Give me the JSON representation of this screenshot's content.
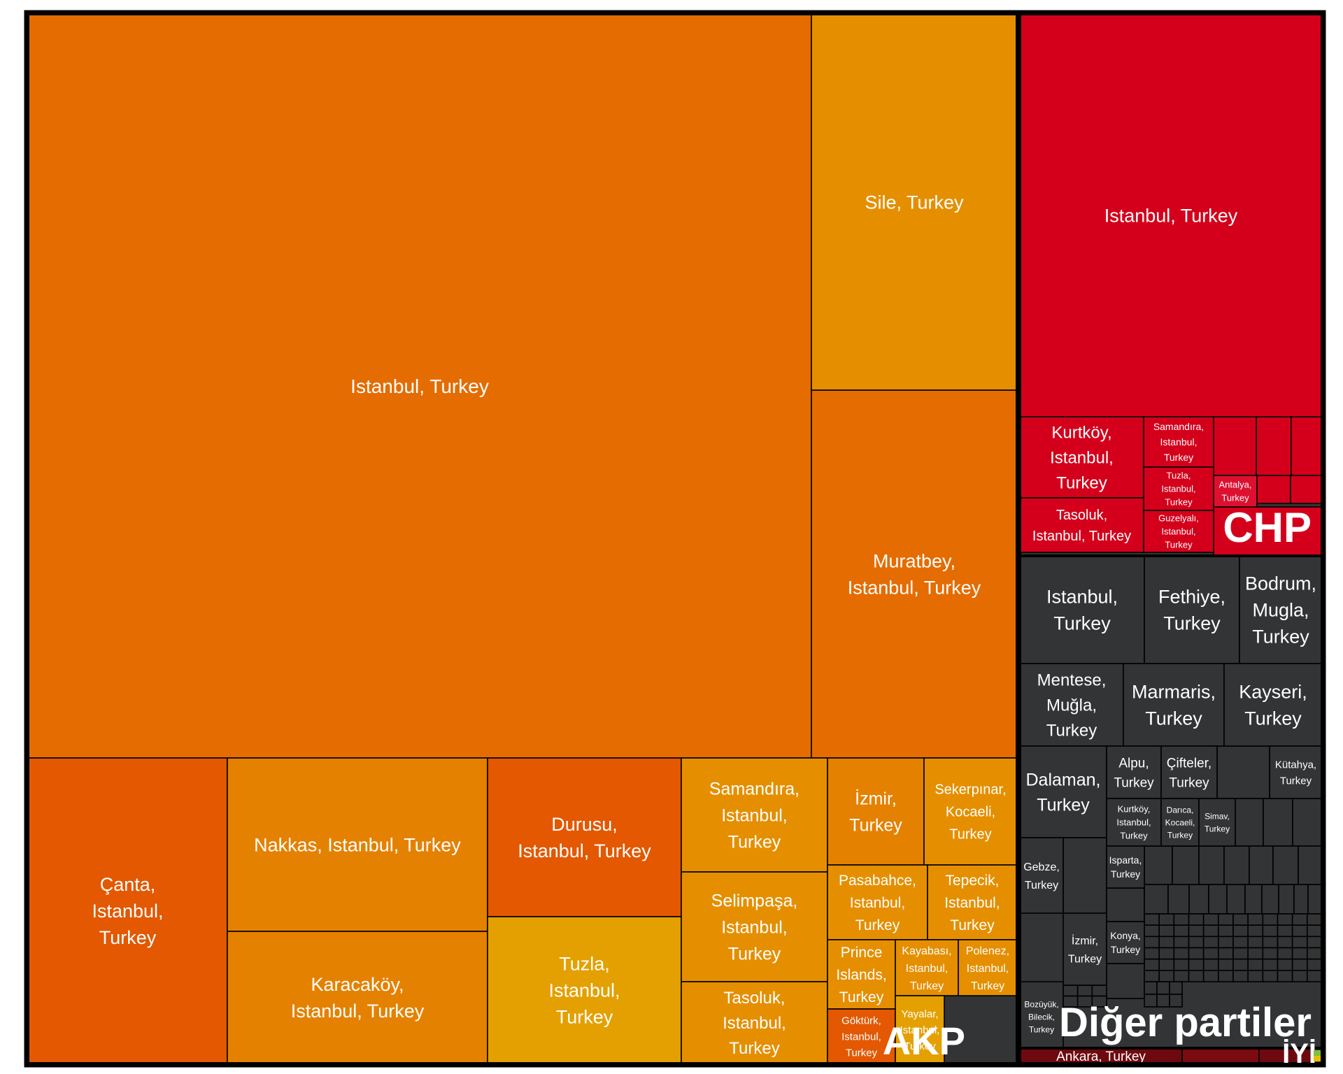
{
  "chart_data": {
    "type": "treemap",
    "colors": {
      "AKP": [
        "#e56c00",
        "#e58f00",
        "#e58100",
        "#e35800",
        "#e4a000",
        "#e57400"
      ],
      "CHP": "#d4001b",
      "other": "#333435",
      "border": "#000000"
    },
    "groups": [
      {
        "name": "AKP",
        "items": [
          {
            "label": "Istanbul, Turkey",
            "lines": [
              "Istanbul, Turkey"
            ]
          },
          {
            "label": "Sile, Turkey",
            "lines": [
              "Sile, Turkey"
            ]
          },
          {
            "label": "Muratbey, Istanbul, Turkey",
            "lines": [
              "Muratbey,",
              "Istanbul, Turkey"
            ]
          },
          {
            "label": "Çanta, Istanbul, Turkey",
            "lines": [
              "Çanta,",
              "Istanbul,",
              "Turkey"
            ]
          },
          {
            "label": "Nakkas, Istanbul, Turkey",
            "lines": [
              "Nakkas, Istanbul, Turkey"
            ]
          },
          {
            "label": "Karacaköy, Istanbul, Turkey",
            "lines": [
              "Karacaköy,",
              "Istanbul, Turkey"
            ]
          },
          {
            "label": "Durusu, Istanbul, Turkey",
            "lines": [
              "Durusu,",
              "Istanbul, Turkey"
            ]
          },
          {
            "label": "Tuzla, Istanbul, Turkey",
            "lines": [
              "Tuzla,",
              "Istanbul,",
              "Turkey"
            ]
          },
          {
            "label": "Samandıra, Istanbul, Turkey",
            "lines": [
              "Samandıra,",
              "Istanbul,",
              "Turkey"
            ]
          },
          {
            "label": "Selimpaşa, Istanbul, Turkey",
            "lines": [
              "Selimpaşa,",
              "Istanbul,",
              "Turkey"
            ]
          },
          {
            "label": "Tasoluk, Istanbul, Turkey",
            "lines": [
              "Tasoluk,",
              "Istanbul,",
              "Turkey"
            ]
          },
          {
            "label": "İzmir, Turkey",
            "lines": [
              "İzmir,",
              "Turkey"
            ]
          },
          {
            "label": "Sekerpınar, Kocaeli, Turkey",
            "lines": [
              "Sekerpınar,",
              "Kocaeli,",
              "Turkey"
            ]
          },
          {
            "label": "Pasabahce, Istanbul, Turkey",
            "lines": [
              "Pasabahce,",
              "Istanbul,",
              "Turkey"
            ]
          },
          {
            "label": "Tepecik, Istanbul, Turkey",
            "lines": [
              "Tepecik,",
              "Istanbul,",
              "Turkey"
            ]
          },
          {
            "label": "Prince Islands, Turkey",
            "lines": [
              "Prince",
              "Islands,",
              "Turkey"
            ]
          },
          {
            "label": "Kayabası, Istanbul, Turkey",
            "lines": [
              "Kayabası,",
              "Istanbul,",
              "Turkey"
            ]
          },
          {
            "label": "Polenez, Istanbul, Turkey",
            "lines": [
              "Polenez,",
              "Istanbul,",
              "Turkey"
            ]
          },
          {
            "label": "Göktürk, Istanbul, Turkey",
            "lines": [
              "Göktürk,",
              "Istanbul,",
              "Turkey"
            ]
          },
          {
            "label": "Yayalar, Istanbul, Turkey",
            "lines": [
              "Yayalar,",
              "Istanbul,",
              "Turkey"
            ]
          }
        ]
      },
      {
        "name": "CHP",
        "items": [
          {
            "label": "Istanbul, Turkey",
            "lines": [
              "Istanbul, Turkey"
            ]
          },
          {
            "label": "Kurtköy, Istanbul, Turkey",
            "lines": [
              "Kurtköy,",
              "Istanbul,",
              "Turkey"
            ]
          },
          {
            "label": "Tasoluk, Istanbul, Turkey",
            "lines": [
              "Tasoluk,",
              "Istanbul, Turkey"
            ]
          },
          {
            "label": "Samandıra, Istanbul, Turkey",
            "lines": [
              "Samandıra,",
              "Istanbul,",
              "Turkey"
            ]
          },
          {
            "label": "Tuzla, Istanbul, Turkey",
            "lines": [
              "Tuzla,",
              "Istanbul,",
              "Turkey"
            ]
          },
          {
            "label": "Guzelyalı, Istanbul, Turkey",
            "lines": [
              "Guzelyalı,",
              "Istanbul,",
              "Turkey"
            ]
          },
          {
            "label": "Antalya, Turkey",
            "lines": [
              "Antalya,",
              "Turkey"
            ]
          }
        ]
      },
      {
        "name": "Diğer partiler",
        "items": [
          {
            "label": "Istanbul, Turkey",
            "lines": [
              "Istanbul,",
              "Turkey"
            ]
          },
          {
            "label": "Fethiye, Turkey",
            "lines": [
              "Fethiye,",
              "Turkey"
            ]
          },
          {
            "label": "Bodrum, Mugla, Turkey",
            "lines": [
              "Bodrum,",
              "Mugla,",
              "Turkey"
            ]
          },
          {
            "label": "Mentese, Muğla, Turkey",
            "lines": [
              "Mentese,",
              "Muğla,",
              "Turkey"
            ]
          },
          {
            "label": "Marmaris, Turkey",
            "lines": [
              "Marmaris,",
              "Turkey"
            ]
          },
          {
            "label": "Kayseri, Turkey",
            "lines": [
              "Kayseri,",
              "Turkey"
            ]
          },
          {
            "label": "Dalaman, Turkey",
            "lines": [
              "Dalaman,",
              "Turkey"
            ]
          },
          {
            "label": "Alpu, Turkey",
            "lines": [
              "Alpu,",
              "Turkey"
            ]
          },
          {
            "label": "Çifteler, Turkey",
            "lines": [
              "Çifteler,",
              "Turkey"
            ]
          },
          {
            "label": "Kütahya, Turkey",
            "lines": [
              "Kütahya,",
              "Turkey"
            ]
          },
          {
            "label": "Kurtköy, Istanbul, Turkey",
            "lines": [
              "Kurtköy,",
              "Istanbul,",
              "Turkey"
            ]
          },
          {
            "label": "Darıca, Kocaeli, Turkey",
            "lines": [
              "Darıca,",
              "Kocaeli,",
              "Turkey"
            ]
          },
          {
            "label": "Simav, Turkey",
            "lines": [
              "Simav,",
              "Turkey"
            ]
          },
          {
            "label": "Gebze, Turkey",
            "lines": [
              "Gebze,",
              "Turkey"
            ]
          },
          {
            "label": "Isparta, Turkey",
            "lines": [
              "Isparta,",
              "Turkey"
            ]
          },
          {
            "label": "İzmir, Turkey",
            "lines": [
              "İzmir,",
              "Turkey"
            ]
          },
          {
            "label": "Konya, Turkey",
            "lines": [
              "Konya,",
              "Turkey"
            ]
          },
          {
            "label": "Bozüyük, Bilecik, Turkey",
            "lines": [
              "Bozüyük,",
              "Bilecik,",
              "Turkey"
            ]
          }
        ]
      },
      {
        "name": "İYİ",
        "items": [
          {
            "label": "Ankara, Turkey",
            "lines": [
              "Ankara, Turkey"
            ]
          }
        ]
      }
    ]
  }
}
